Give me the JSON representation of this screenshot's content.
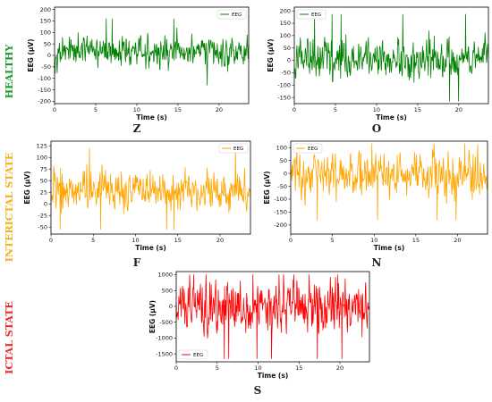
{
  "states": [
    {
      "label": "HEALTHY",
      "color": "#1e9e2e"
    },
    {
      "label": "INTERICTAL STATE",
      "color": "#f0b323"
    },
    {
      "label": "ICTAL STATE",
      "color": "#e8302a"
    }
  ],
  "chart_data": [
    {
      "type": "line",
      "panel": "Z",
      "series_name": "EEG",
      "color": "#008000",
      "xlabel": "Time (s)",
      "ylabel": "EEG (μV)",
      "xlim": [
        0,
        23.6
      ],
      "ylim": [
        -210,
        210
      ],
      "xticks": [
        0,
        5,
        10,
        15,
        20
      ],
      "yticks": [
        -200,
        -150,
        -100,
        -50,
        0,
        50,
        100,
        150,
        200
      ],
      "legend": "top-right",
      "mean": 15,
      "amplitude": 45,
      "min": -190,
      "max": 195
    },
    {
      "type": "line",
      "panel": "O",
      "series_name": "EEG",
      "color": "#008000",
      "xlabel": "Time (s)",
      "ylabel": "EEG (μV)",
      "xlim": [
        0,
        23.6
      ],
      "ylim": [
        -175,
        215
      ],
      "xticks": [
        0,
        5,
        10,
        15,
        20
      ],
      "yticks": [
        -150,
        -100,
        -50,
        0,
        50,
        100,
        150,
        200
      ],
      "legend": "top-left",
      "mean": 10,
      "amplitude": 55,
      "min": -165,
      "max": 210
    },
    {
      "type": "line",
      "panel": "F",
      "series_name": "EEG",
      "color": "#ffa500",
      "xlabel": "Time (s)",
      "ylabel": "EEG (μV)",
      "xlim": [
        0,
        23.6
      ],
      "ylim": [
        -65,
        135
      ],
      "xticks": [
        0,
        5,
        10,
        15,
        20
      ],
      "yticks": [
        -50,
        -25,
        0,
        25,
        50,
        75,
        100,
        125
      ],
      "legend": "top-right",
      "mean": 30,
      "amplitude": 28,
      "min": -55,
      "max": 125
    },
    {
      "type": "line",
      "panel": "N",
      "series_name": "EEG",
      "color": "#ffa500",
      "xlabel": "Time (s)",
      "ylabel": "EEG (μV)",
      "xlim": [
        0,
        23.6
      ],
      "ylim": [
        -235,
        125
      ],
      "xticks": [
        0,
        5,
        10,
        15,
        20
      ],
      "yticks": [
        -200,
        -150,
        -100,
        -50,
        0,
        50,
        100
      ],
      "legend": "top-left",
      "mean": -5,
      "amplitude": 55,
      "min": -220,
      "max": 115
    },
    {
      "type": "line",
      "panel": "S",
      "series_name": "EEG",
      "color": "#ff0000",
      "xlabel": "Time (s)",
      "ylabel": "EEG (μV)",
      "xlim": [
        0,
        23.6
      ],
      "ylim": [
        -1750,
        1100
      ],
      "xticks": [
        0,
        5,
        10,
        15,
        20
      ],
      "yticks": [
        -1500,
        -1000,
        -500,
        0,
        500,
        1000
      ],
      "legend": "bottom-left",
      "mean": 0,
      "amplitude": 550,
      "min": -1650,
      "max": 1000
    }
  ]
}
